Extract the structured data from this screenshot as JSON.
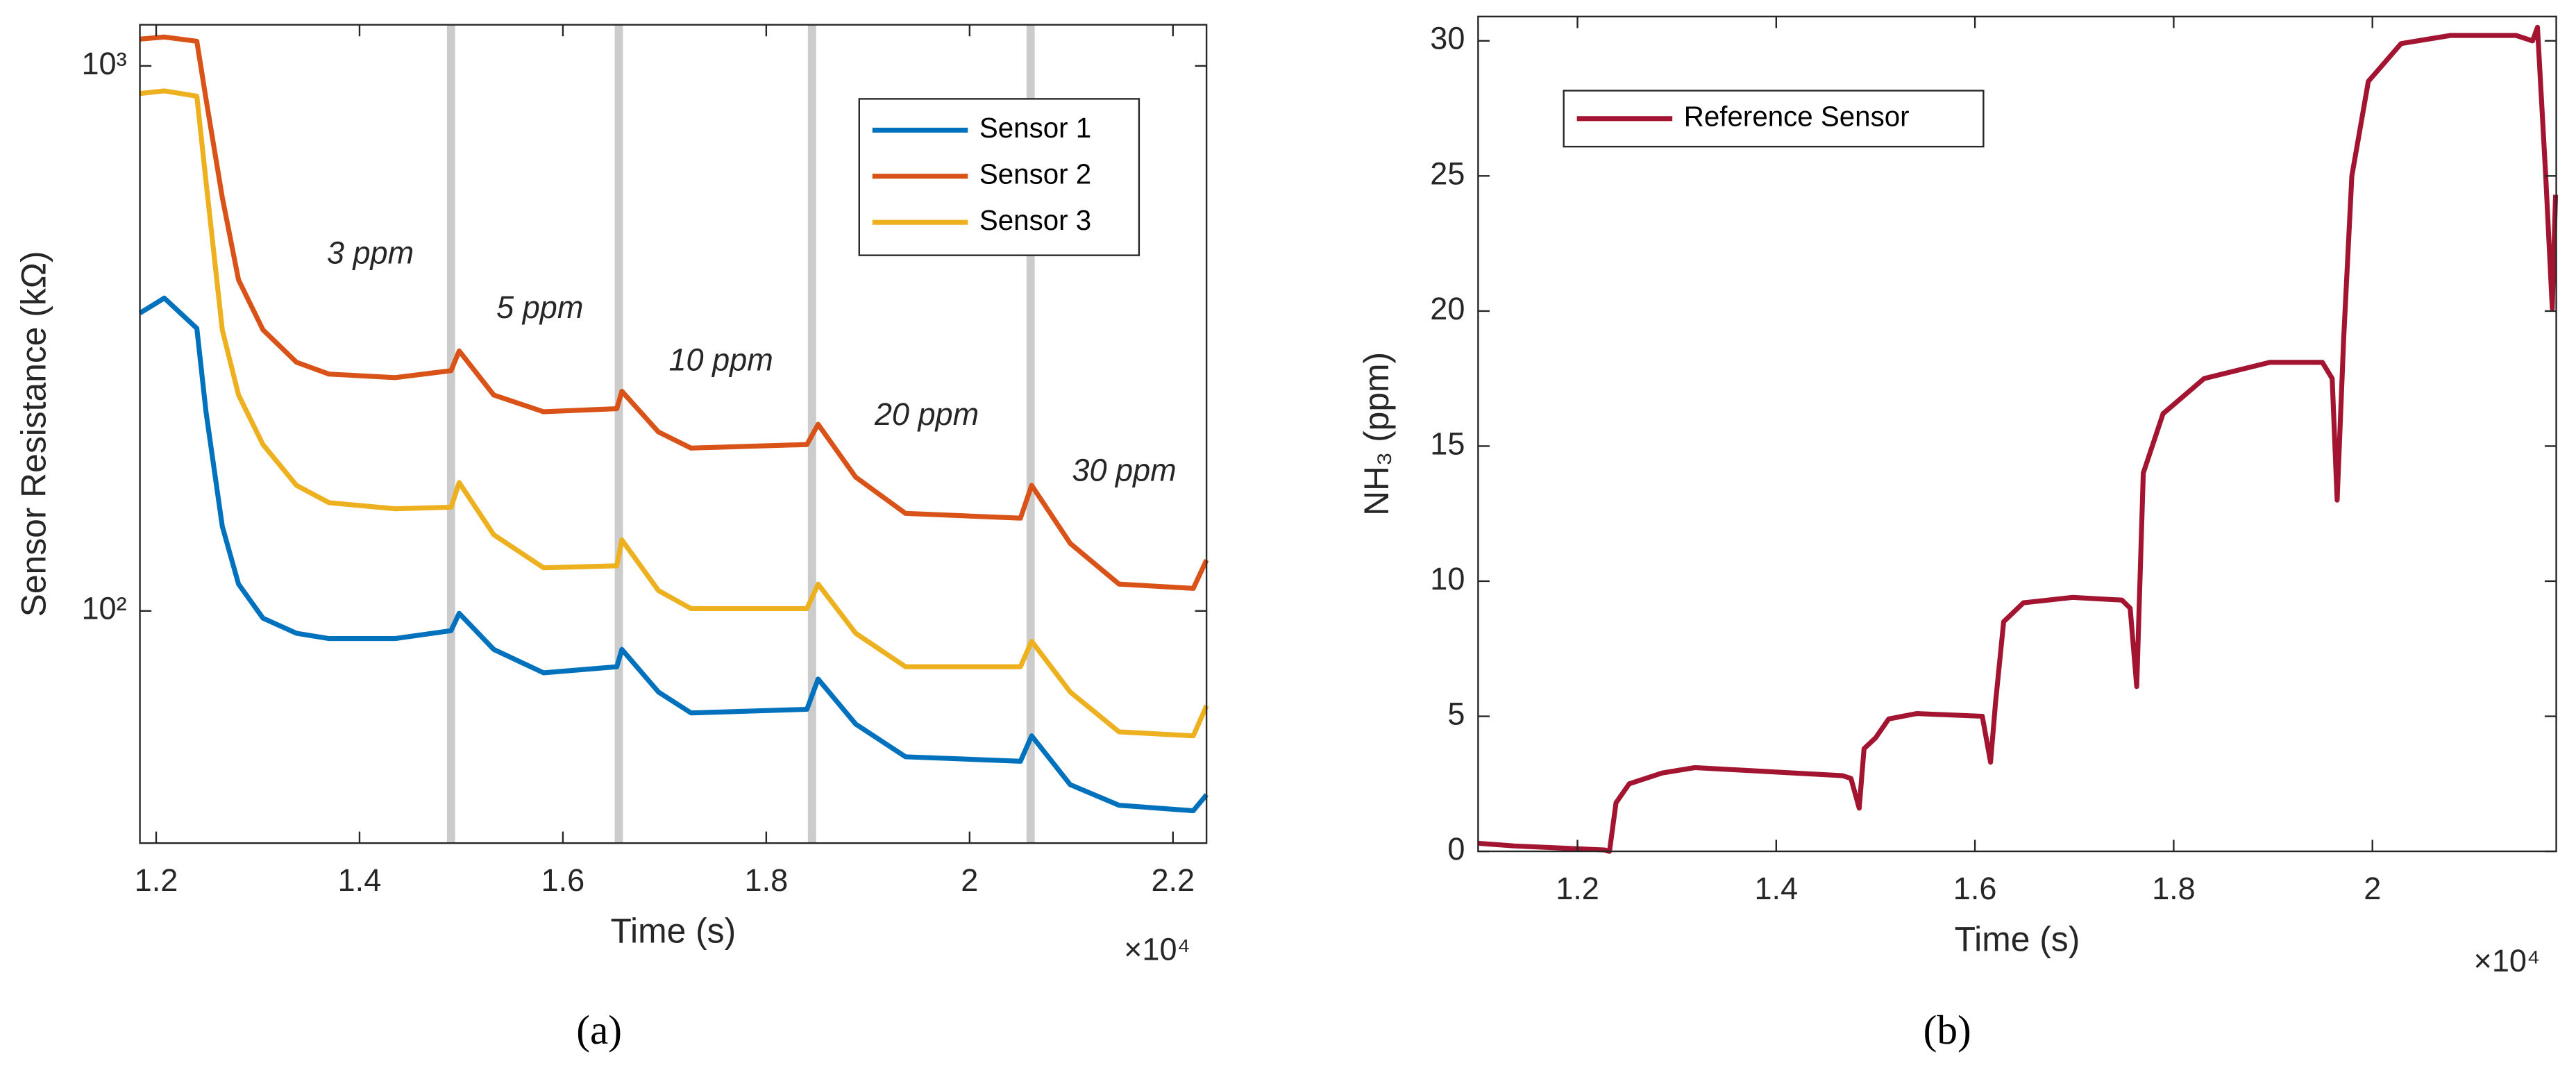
{
  "chart_data": [
    {
      "type": "line",
      "panel_label": "(a)",
      "x_label": "Time (s)",
      "y_label": "Sensor Resistance (kΩ)",
      "x_multiplier": "×10⁴",
      "log_y": true,
      "legend": "northeast",
      "xlim": [
        11840,
        22330
      ],
      "ylim": [
        37.5,
        1190
      ],
      "xticks": [
        {
          "value": 12000,
          "label": "1.2"
        },
        {
          "value": 14000,
          "label": "1.4"
        },
        {
          "value": 16000,
          "label": "1.6"
        },
        {
          "value": 18000,
          "label": "1.8"
        },
        {
          "value": 20000,
          "label": "2"
        },
        {
          "value": 22000,
          "label": "2.2"
        }
      ],
      "yticks": [
        {
          "value": 100,
          "label": "10²"
        },
        {
          "value": 1000,
          "label": "10³"
        }
      ],
      "highlight_x": [
        14900,
        16550,
        18450,
        20600
      ],
      "highlight_color": "#cccccc",
      "annotations": [
        "3 ppm",
        "5 ppm",
        "10 ppm",
        "20 ppm",
        "30 ppm"
      ],
      "x": [
        11840,
        12080,
        12400,
        12490,
        12650,
        12810,
        13050,
        13380,
        13700,
        14350,
        14900,
        14980,
        15320,
        15810,
        16530,
        16580,
        16940,
        17260,
        18400,
        18510,
        18880,
        19370,
        20500,
        20610,
        20990,
        21470,
        22200,
        22330
      ],
      "series": [
        {
          "name": "Sensor 1",
          "color": "#0072bd",
          "values": [
            352,
            375,
            330,
            232,
            143,
            112,
            97,
            91,
            89,
            89,
            92,
            99,
            85,
            77,
            79,
            85,
            71,
            65,
            66,
            75,
            62,
            54,
            53,
            59,
            48,
            44,
            43,
            46
          ]
        },
        {
          "name": "Sensor 2",
          "color": "#d95319",
          "values": [
            1120,
            1130,
            1110,
            870,
            574,
            405,
            328,
            286,
            272,
            268,
            276,
            300,
            249,
            232,
            235,
            253,
            213,
            199,
            202,
            220,
            176,
            151,
            148,
            170,
            133,
            112,
            110,
            124
          ]
        },
        {
          "name": "Sensor 3",
          "color": "#edb120",
          "values": [
            890,
            900,
            880,
            614,
            328,
            249,
            202,
            170,
            158,
            154,
            155,
            172,
            138,
            120,
            121,
            135,
            109,
            101,
            101,
            112,
            91,
            79,
            79,
            88,
            71,
            60,
            59,
            67
          ]
        }
      ]
    },
    {
      "type": "line",
      "panel_label": "(b)",
      "x_label": "Time (s)",
      "y_label": "NH₃ (ppm)",
      "x_multiplier": "×10⁴",
      "log_y": false,
      "legend": "northwest",
      "xlim": [
        11000,
        21850
      ],
      "ylim": [
        0,
        30.9
      ],
      "xticks": [
        {
          "value": 12000,
          "label": "1.2"
        },
        {
          "value": 14000,
          "label": "1.4"
        },
        {
          "value": 16000,
          "label": "1.6"
        },
        {
          "value": 18000,
          "label": "1.8"
        },
        {
          "value": 20000,
          "label": "2"
        }
      ],
      "yticks": [
        0,
        5,
        10,
        15,
        20,
        25,
        30
      ],
      "x": [
        11000,
        11364,
        12273,
        12322,
        12388,
        12521,
        12851,
        13182,
        13678,
        14669,
        14752,
        14835,
        14884,
        15000,
        15132,
        15413,
        16074,
        16157,
        16207,
        16289,
        16488,
        16983,
        17479,
        17562,
        17628,
        17694,
        17893,
        18306,
        18967,
        19496,
        19595,
        19645,
        19711,
        19793,
        19959,
        20289,
        20785,
        21446,
        21612,
        21661,
        21744,
        21810,
        21843
      ],
      "series": [
        {
          "name": "Reference Sensor",
          "color": "#a2142f",
          "values": [
            0.3,
            0.2,
            0.05,
            0,
            1.8,
            2.5,
            2.9,
            3.1,
            3.0,
            2.8,
            2.7,
            1.6,
            3.8,
            4.2,
            4.9,
            5.1,
            5.0,
            3.3,
            5.5,
            8.5,
            9.2,
            9.4,
            9.3,
            9.0,
            6.1,
            14,
            16.2,
            17.5,
            18.1,
            18.1,
            17.5,
            13,
            19,
            25,
            28.5,
            29.9,
            30.2,
            30.2,
            30.0,
            30.5,
            25,
            20.1,
            24.3
          ]
        }
      ]
    }
  ]
}
